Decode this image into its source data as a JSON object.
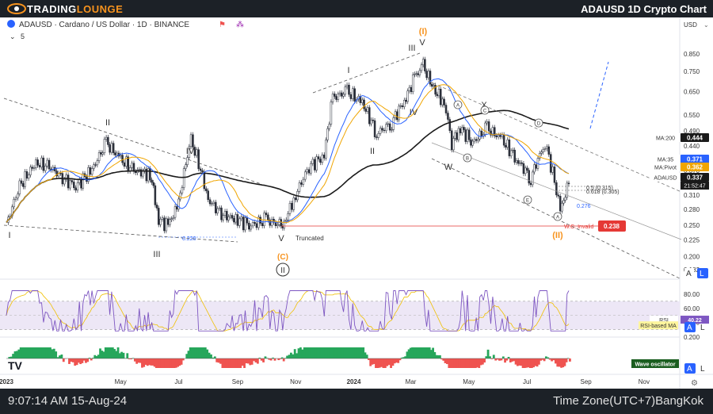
{
  "header": {
    "logo_text_white": "TRADING",
    "logo_text_orange": "LOUNGE",
    "title": "ADAUSD 1D Crypto Chart"
  },
  "footer": {
    "datetime": "9:07:14 AM 15-Aug-24",
    "timezone": "Time Zone(UTC+7)BangKok"
  },
  "chart_data": {
    "type": "line",
    "symbol_line": "ADAUSD · Cardano / US Dollar · 1D · BINANCE",
    "indicator_count": "5",
    "currency": "USD",
    "price_ticks": [
      "0.850",
      "0.750",
      "0.650",
      "0.550",
      "0.490",
      "0.440",
      "0.400",
      "0.370",
      "0.310",
      "0.280",
      "0.250",
      "0.225",
      "0.200",
      "0.182"
    ],
    "x_ticks": [
      "2023",
      "May",
      "Jul",
      "Sep",
      "Nov",
      "2024",
      "Mar",
      "May",
      "Jul",
      "Sep",
      "Nov"
    ],
    "price_series": {
      "name": "ADAUSD",
      "points": [
        [
          "2023-01-01",
          0.25
        ],
        [
          "2023-01-15",
          0.33
        ],
        [
          "2023-02-01",
          0.39
        ],
        [
          "2023-02-15",
          0.38
        ],
        [
          "2023-03-01",
          0.35
        ],
        [
          "2023-03-15",
          0.33
        ],
        [
          "2023-04-01",
          0.37
        ],
        [
          "2023-04-16",
          0.45
        ],
        [
          "2023-05-01",
          0.4
        ],
        [
          "2023-05-15",
          0.37
        ],
        [
          "2023-06-01",
          0.36
        ],
        [
          "2023-06-10",
          0.26
        ],
        [
          "2023-06-20",
          0.25
        ],
        [
          "2023-07-01",
          0.29
        ],
        [
          "2023-07-14",
          0.46
        ],
        [
          "2023-08-01",
          0.3
        ],
        [
          "2023-08-15",
          0.27
        ],
        [
          "2023-09-01",
          0.26
        ],
        [
          "2023-09-15",
          0.25
        ],
        [
          "2023-10-01",
          0.26
        ],
        [
          "2023-10-15",
          0.25
        ],
        [
          "2023-10-20",
          0.255
        ],
        [
          "2023-11-01",
          0.31
        ],
        [
          "2023-11-15",
          0.38
        ],
        [
          "2023-12-01",
          0.41
        ],
        [
          "2023-12-10",
          0.62
        ],
        [
          "2023-12-25",
          0.65
        ],
        [
          "2024-01-10",
          0.6
        ],
        [
          "2024-01-25",
          0.48
        ],
        [
          "2024-02-10",
          0.52
        ],
        [
          "2024-02-25",
          0.62
        ],
        [
          "2024-03-05",
          0.72
        ],
        [
          "2024-03-14",
          0.78
        ],
        [
          "2024-03-25",
          0.66
        ],
        [
          "2024-04-05",
          0.6
        ],
        [
          "2024-04-13",
          0.45
        ],
        [
          "2024-04-22",
          0.5
        ],
        [
          "2024-05-05",
          0.45
        ],
        [
          "2024-05-20",
          0.5
        ],
        [
          "2024-06-05",
          0.46
        ],
        [
          "2024-06-20",
          0.4
        ],
        [
          "2024-07-05",
          0.35
        ],
        [
          "2024-07-20",
          0.45
        ],
        [
          "2024-08-05",
          0.276
        ],
        [
          "2024-08-14",
          0.337
        ]
      ]
    },
    "ma_35": {
      "name": "MA:35",
      "value": "0.371"
    },
    "ma_200": {
      "name": "MA:200",
      "value": "0.444"
    },
    "ma_pivot": {
      "name": "MA:Pivot",
      "value": "0.362"
    },
    "last_price": {
      "name": "ADAUSD",
      "value": "0.337",
      "countdown": "21:52:47"
    },
    "annotations": {
      "wave_labels_roman": [
        "I",
        "II",
        "III",
        "IV",
        "V",
        "I",
        "III",
        "IV",
        "V",
        "II",
        "II"
      ],
      "wave_I_orange": "(I)",
      "wave_II_orange": "(II)",
      "wave_C_orange": "(C)",
      "wave_II_circled": "II",
      "wave_V": "V",
      "wave_W": "W",
      "wave_X": "X",
      "wave_Y": "Y",
      "circled_small": [
        "A",
        "B",
        "C",
        "D",
        "E",
        "A",
        "B",
        "C"
      ],
      "truncated": "Truncated",
      "low_label": "0.220",
      "fib_05": "0.5 (0.315)",
      "fib_0618": "0.618 (0.305)",
      "target_276": "0.276",
      "wc_invalid": "W.C. Invalid",
      "wc_invalid_price": "0.238"
    },
    "rsi": {
      "name": "RSI",
      "value": "40.22",
      "ticks": [
        "80.00",
        "60.00",
        "40.00"
      ],
      "based_ma": "RSI-based MA"
    },
    "wave_oscillator": {
      "name": "Wave oscillator",
      "tick": "0.200"
    },
    "scale_buttons": [
      "A",
      "L"
    ],
    "colors": {
      "price": "#2a2e39",
      "ma200": "#1a1a1a",
      "ma35": "#2962ff",
      "ma_pivot": "#f0a500",
      "rsi": "#7e57c2",
      "rsi_band": "#ede7f6",
      "osc_pos": "#26a65b",
      "osc_neg": "#ef5350",
      "orange": "#f7931e",
      "red_label": "#e53935",
      "blue_btn": "#2962ff"
    }
  }
}
